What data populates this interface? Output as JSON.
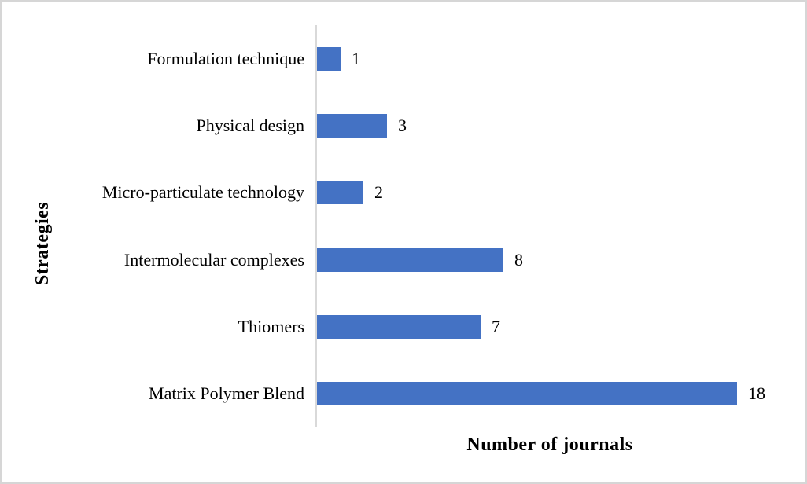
{
  "figure": {
    "background": "#ffffff",
    "border_color": "#d6d6d6"
  },
  "chart_data": {
    "type": "bar",
    "orientation": "horizontal",
    "title": "",
    "xlabel": "Number of journals",
    "ylabel": "Strategies",
    "categories": [
      "Formulation technique",
      "Physical design",
      "Micro-particulate technology",
      "Intermolecular complexes",
      "Thiomers",
      "Matrix Polymer Blend"
    ],
    "values": [
      1,
      3,
      2,
      8,
      7,
      18
    ],
    "data_labels": [
      "1",
      "3",
      "2",
      "8",
      "7",
      "18"
    ],
    "xlim": [
      0,
      18
    ],
    "grid": false,
    "legend": false,
    "bar_color": "#4472c4",
    "axis_line_color": "#d9d9d9",
    "text_color": "#000000"
  }
}
